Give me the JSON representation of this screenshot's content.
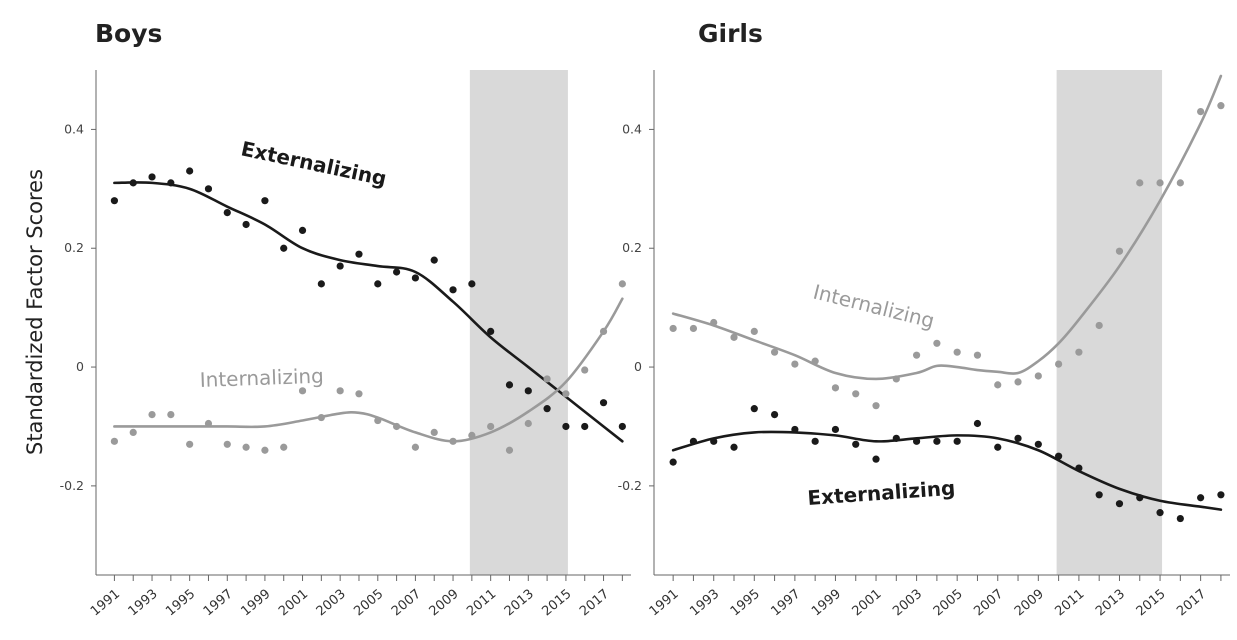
{
  "chart_data": {
    "type": "scatter",
    "ylabel": "Standardized Factor Scores",
    "panels": [
      {
        "title": "Boys",
        "ylim": [
          -0.35,
          0.5
        ],
        "xlim": [
          1990.5,
          2018.3
        ],
        "yticks": [
          0.4,
          0.2,
          0,
          -0.2
        ],
        "ytick_labels": [
          "0.4",
          "0.2",
          "0",
          "-0.2"
        ],
        "xticks": [
          1991,
          1993,
          1995,
          1997,
          1999,
          2001,
          2003,
          2005,
          2007,
          2009,
          2011,
          2013,
          2015,
          2017
        ],
        "xtick_labels": [
          "1991",
          "1993",
          "1995",
          "1997",
          "1999",
          "2001",
          "2003",
          "2005",
          "2007",
          "2009",
          "2011",
          "2013",
          "2015",
          "2017"
        ],
        "shaded_range": [
          2010,
          2015
        ],
        "series": [
          {
            "name": "Externalizing",
            "color": "#1a1a1a",
            "points": [
              [
                1991,
                0.28
              ],
              [
                1992,
                0.31
              ],
              [
                1993,
                0.32
              ],
              [
                1994,
                0.31
              ],
              [
                1995,
                0.33
              ],
              [
                1996,
                0.3
              ],
              [
                1997,
                0.26
              ],
              [
                1998,
                0.24
              ],
              [
                1999,
                0.28
              ],
              [
                2000,
                0.2
              ],
              [
                2001,
                0.23
              ],
              [
                2002,
                0.14
              ],
              [
                2003,
                0.17
              ],
              [
                2004,
                0.19
              ],
              [
                2005,
                0.14
              ],
              [
                2006,
                0.16
              ],
              [
                2007,
                0.15
              ],
              [
                2008,
                0.18
              ],
              [
                2009,
                0.13
              ],
              [
                2010,
                0.14
              ],
              [
                2011,
                0.06
              ],
              [
                2012,
                -0.03
              ],
              [
                2013,
                -0.04
              ],
              [
                2014,
                -0.07
              ],
              [
                2015,
                -0.1
              ],
              [
                2016,
                -0.1
              ],
              [
                2017,
                -0.06
              ],
              [
                2018,
                -0.1
              ]
            ],
            "trend": [
              [
                1991,
                0.31
              ],
              [
                1993,
                0.31
              ],
              [
                1995,
                0.3
              ],
              [
                1997,
                0.27
              ],
              [
                1999,
                0.24
              ],
              [
                2001,
                0.2
              ],
              [
                2003,
                0.18
              ],
              [
                2005,
                0.17
              ],
              [
                2007,
                0.16
              ],
              [
                2009,
                0.11
              ],
              [
                2011,
                0.05
              ],
              [
                2013,
                0.0
              ],
              [
                2015,
                -0.05
              ],
              [
                2017,
                -0.1
              ],
              [
                2018,
                -0.125
              ]
            ],
            "label_rotation": 12
          },
          {
            "name": "Internalizing",
            "color": "#9a9a9a",
            "points": [
              [
                1991,
                -0.125
              ],
              [
                1992,
                -0.11
              ],
              [
                1993,
                -0.08
              ],
              [
                1994,
                -0.08
              ],
              [
                1995,
                -0.13
              ],
              [
                1996,
                -0.095
              ],
              [
                1997,
                -0.13
              ],
              [
                1998,
                -0.135
              ],
              [
                1999,
                -0.14
              ],
              [
                2000,
                -0.135
              ],
              [
                2001,
                -0.04
              ],
              [
                2002,
                -0.085
              ],
              [
                2003,
                -0.04
              ],
              [
                2004,
                -0.045
              ],
              [
                2005,
                -0.09
              ],
              [
                2006,
                -0.1
              ],
              [
                2007,
                -0.135
              ],
              [
                2008,
                -0.11
              ],
              [
                2009,
                -0.125
              ],
              [
                2010,
                -0.115
              ],
              [
                2011,
                -0.1
              ],
              [
                2012,
                -0.14
              ],
              [
                2013,
                -0.095
              ],
              [
                2014,
                -0.02
              ],
              [
                2015,
                -0.045
              ],
              [
                2016,
                -0.005
              ],
              [
                2017,
                0.06
              ],
              [
                2018,
                0.14
              ]
            ],
            "trend": [
              [
                1991,
                -0.1
              ],
              [
                1993,
                -0.1
              ],
              [
                1995,
                -0.1
              ],
              [
                1997,
                -0.1
              ],
              [
                1999,
                -0.1
              ],
              [
                2001,
                -0.09
              ],
              [
                2003,
                -0.078
              ],
              [
                2004,
                -0.077
              ],
              [
                2005,
                -0.085
              ],
              [
                2007,
                -0.11
              ],
              [
                2009,
                -0.125
              ],
              [
                2011,
                -0.11
              ],
              [
                2013,
                -0.075
              ],
              [
                2015,
                -0.025
              ],
              [
                2017,
                0.06
              ],
              [
                2018,
                0.115
              ]
            ],
            "label_rotation": -2
          }
        ]
      },
      {
        "title": "Girls",
        "ylim": [
          -0.35,
          0.5
        ],
        "xlim": [
          1990.5,
          2018.3
        ],
        "yticks": [
          0.4,
          0.2,
          0,
          -0.2
        ],
        "ytick_labels": [
          "0.4",
          "0.2",
          "0",
          "-0.2"
        ],
        "xticks": [
          1991,
          1993,
          1995,
          1997,
          1999,
          2001,
          2003,
          2005,
          2007,
          2009,
          2011,
          2013,
          2015,
          2017
        ],
        "xtick_labels": [
          "1991",
          "1993",
          "1995",
          "1997",
          "1999",
          "2001",
          "2003",
          "2005",
          "2007",
          "2009",
          "2011",
          "2013",
          "2015",
          "2017"
        ],
        "shaded_range": [
          2010,
          2015
        ],
        "series": [
          {
            "name": "Internalizing",
            "color": "#9a9a9a",
            "points": [
              [
                1991,
                0.065
              ],
              [
                1992,
                0.065
              ],
              [
                1993,
                0.075
              ],
              [
                1994,
                0.05
              ],
              [
                1995,
                0.06
              ],
              [
                1996,
                0.025
              ],
              [
                1997,
                0.005
              ],
              [
                1998,
                0.01
              ],
              [
                1999,
                -0.035
              ],
              [
                2000,
                -0.045
              ],
              [
                2001,
                -0.065
              ],
              [
                2002,
                -0.02
              ],
              [
                2003,
                0.02
              ],
              [
                2004,
                0.04
              ],
              [
                2005,
                0.025
              ],
              [
                2006,
                0.02
              ],
              [
                2007,
                -0.03
              ],
              [
                2008,
                -0.025
              ],
              [
                2009,
                -0.015
              ],
              [
                2010,
                0.005
              ],
              [
                2011,
                0.025
              ],
              [
                2012,
                0.07
              ],
              [
                2013,
                0.195
              ],
              [
                2014,
                0.31
              ],
              [
                2015,
                0.31
              ],
              [
                2016,
                0.31
              ],
              [
                2017,
                0.43
              ],
              [
                2018,
                0.44
              ]
            ],
            "trend": [
              [
                1991,
                0.09
              ],
              [
                1993,
                0.07
              ],
              [
                1995,
                0.045
              ],
              [
                1997,
                0.02
              ],
              [
                1999,
                -0.01
              ],
              [
                2001,
                -0.02
              ],
              [
                2003,
                -0.01
              ],
              [
                2004,
                0.002
              ],
              [
                2005,
                0.0
              ],
              [
                2006,
                -0.005
              ],
              [
                2007,
                -0.008
              ],
              [
                2008,
                -0.01
              ],
              [
                2009,
                0.01
              ],
              [
                2010,
                0.04
              ],
              [
                2011,
                0.08
              ],
              [
                2013,
                0.17
              ],
              [
                2015,
                0.28
              ],
              [
                2017,
                0.41
              ],
              [
                2018,
                0.49
              ]
            ],
            "label_rotation": 14
          },
          {
            "name": "Externalizing",
            "color": "#1a1a1a",
            "points": [
              [
                1991,
                -0.16
              ],
              [
                1992,
                -0.125
              ],
              [
                1993,
                -0.125
              ],
              [
                1994,
                -0.135
              ],
              [
                1995,
                -0.07
              ],
              [
                1996,
                -0.08
              ],
              [
                1997,
                -0.105
              ],
              [
                1998,
                -0.125
              ],
              [
                1999,
                -0.105
              ],
              [
                2000,
                -0.13
              ],
              [
                2001,
                -0.155
              ],
              [
                2002,
                -0.12
              ],
              [
                2003,
                -0.125
              ],
              [
                2004,
                -0.125
              ],
              [
                2005,
                -0.125
              ],
              [
                2006,
                -0.095
              ],
              [
                2007,
                -0.135
              ],
              [
                2008,
                -0.12
              ],
              [
                2009,
                -0.13
              ],
              [
                2010,
                -0.15
              ],
              [
                2011,
                -0.17
              ],
              [
                2012,
                -0.215
              ],
              [
                2013,
                -0.23
              ],
              [
                2014,
                -0.22
              ],
              [
                2015,
                -0.245
              ],
              [
                2016,
                -0.255
              ],
              [
                2017,
                -0.22
              ],
              [
                2018,
                -0.215
              ]
            ],
            "trend": [
              [
                1991,
                -0.14
              ],
              [
                1993,
                -0.12
              ],
              [
                1995,
                -0.11
              ],
              [
                1997,
                -0.11
              ],
              [
                1999,
                -0.115
              ],
              [
                2001,
                -0.125
              ],
              [
                2003,
                -0.12
              ],
              [
                2005,
                -0.115
              ],
              [
                2007,
                -0.12
              ],
              [
                2009,
                -0.14
              ],
              [
                2011,
                -0.175
              ],
              [
                2013,
                -0.205
              ],
              [
                2015,
                -0.225
              ],
              [
                2017,
                -0.235
              ],
              [
                2018,
                -0.24
              ]
            ],
            "label_rotation": -4
          }
        ]
      }
    ]
  }
}
